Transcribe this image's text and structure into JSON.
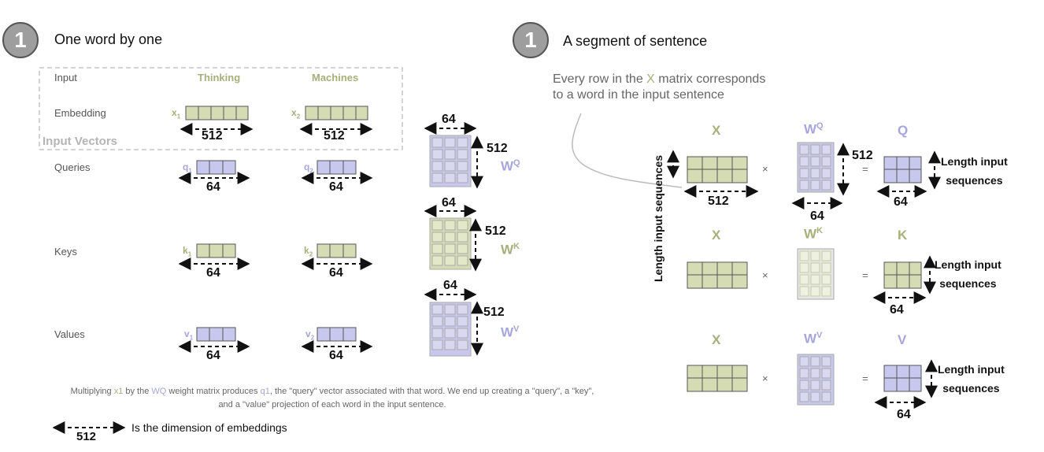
{
  "left": {
    "badge": "1",
    "heading": "One word by one",
    "row_labels": {
      "input": "Input",
      "embedding": "Embedding",
      "queries": "Queries",
      "keys": "Keys",
      "values": "Values"
    },
    "input_vectors_label": "Input Vectors",
    "words": [
      "Thinking",
      "Machines"
    ],
    "embeddings": [
      {
        "name": "x",
        "sub": "1"
      },
      {
        "name": "x",
        "sub": "2"
      }
    ],
    "queries": [
      {
        "name": "q",
        "sub": "1"
      },
      {
        "name": "q",
        "sub": "2"
      }
    ],
    "keys": [
      {
        "name": "k",
        "sub": "1"
      },
      {
        "name": "k",
        "sub": "2"
      }
    ],
    "values": [
      {
        "name": "v",
        "sub": "1"
      },
      {
        "name": "v",
        "sub": "2"
      }
    ],
    "embedding_dim": "512",
    "proj_dim": "64",
    "weights": [
      {
        "name": "W",
        "sup": "Q",
        "cols": "64",
        "rows": "512",
        "color": "#c8c8ee"
      },
      {
        "name": "W",
        "sup": "K",
        "cols": "64",
        "rows": "512",
        "color": "#d5dcb3"
      },
      {
        "name": "W",
        "sup": "V",
        "cols": "64",
        "rows": "512",
        "color": "#c8c8ee"
      }
    ],
    "caption": {
      "p1": "Multiplying ",
      "x1": "x1",
      "p2": " by the ",
      "wq": "WQ",
      "p3": " weight matrix produces ",
      "q1": "q1",
      "p4": ", the \"query\" vector associated with that word. We end up creating a \"query\", a \"key\",",
      "line2": "and a \"value\" projection of each word in the input sentence."
    },
    "legend": {
      "value": "512",
      "text": "Is the dimension of embeddings"
    }
  },
  "right": {
    "badge": "1",
    "heading": "A segment of sentence",
    "note": {
      "p1": "Every row in the ",
      "x": "X",
      "p2": " matrix corresponds",
      "line2": "to a word in the input sentence"
    },
    "rows": [
      {
        "x": "X",
        "w": "W",
        "w_sup": "Q",
        "out": "Q",
        "out_color": "#a6a6dc",
        "w_color": "#c8c8ee"
      },
      {
        "x": "X",
        "w": "W",
        "w_sup": "K",
        "out": "K",
        "out_color": "#a6b07a",
        "w_color": "#d5dcb3"
      },
      {
        "x": "X",
        "w": "W",
        "w_sup": "V",
        "out": "V",
        "out_color": "#a6a6dc",
        "w_color": "#c8c8ee"
      }
    ],
    "times": "×",
    "equals": "=",
    "dim_512": "512",
    "dim_64": "64",
    "seq_line1": "Length input",
    "seq_line2": "sequences",
    "vertical_label": "Length input sequences"
  },
  "colors": {
    "green": "#d5dcb3",
    "green_text": "#a6b07a",
    "blue": "#c8c8ee",
    "blue_text": "#a6a6dc"
  }
}
